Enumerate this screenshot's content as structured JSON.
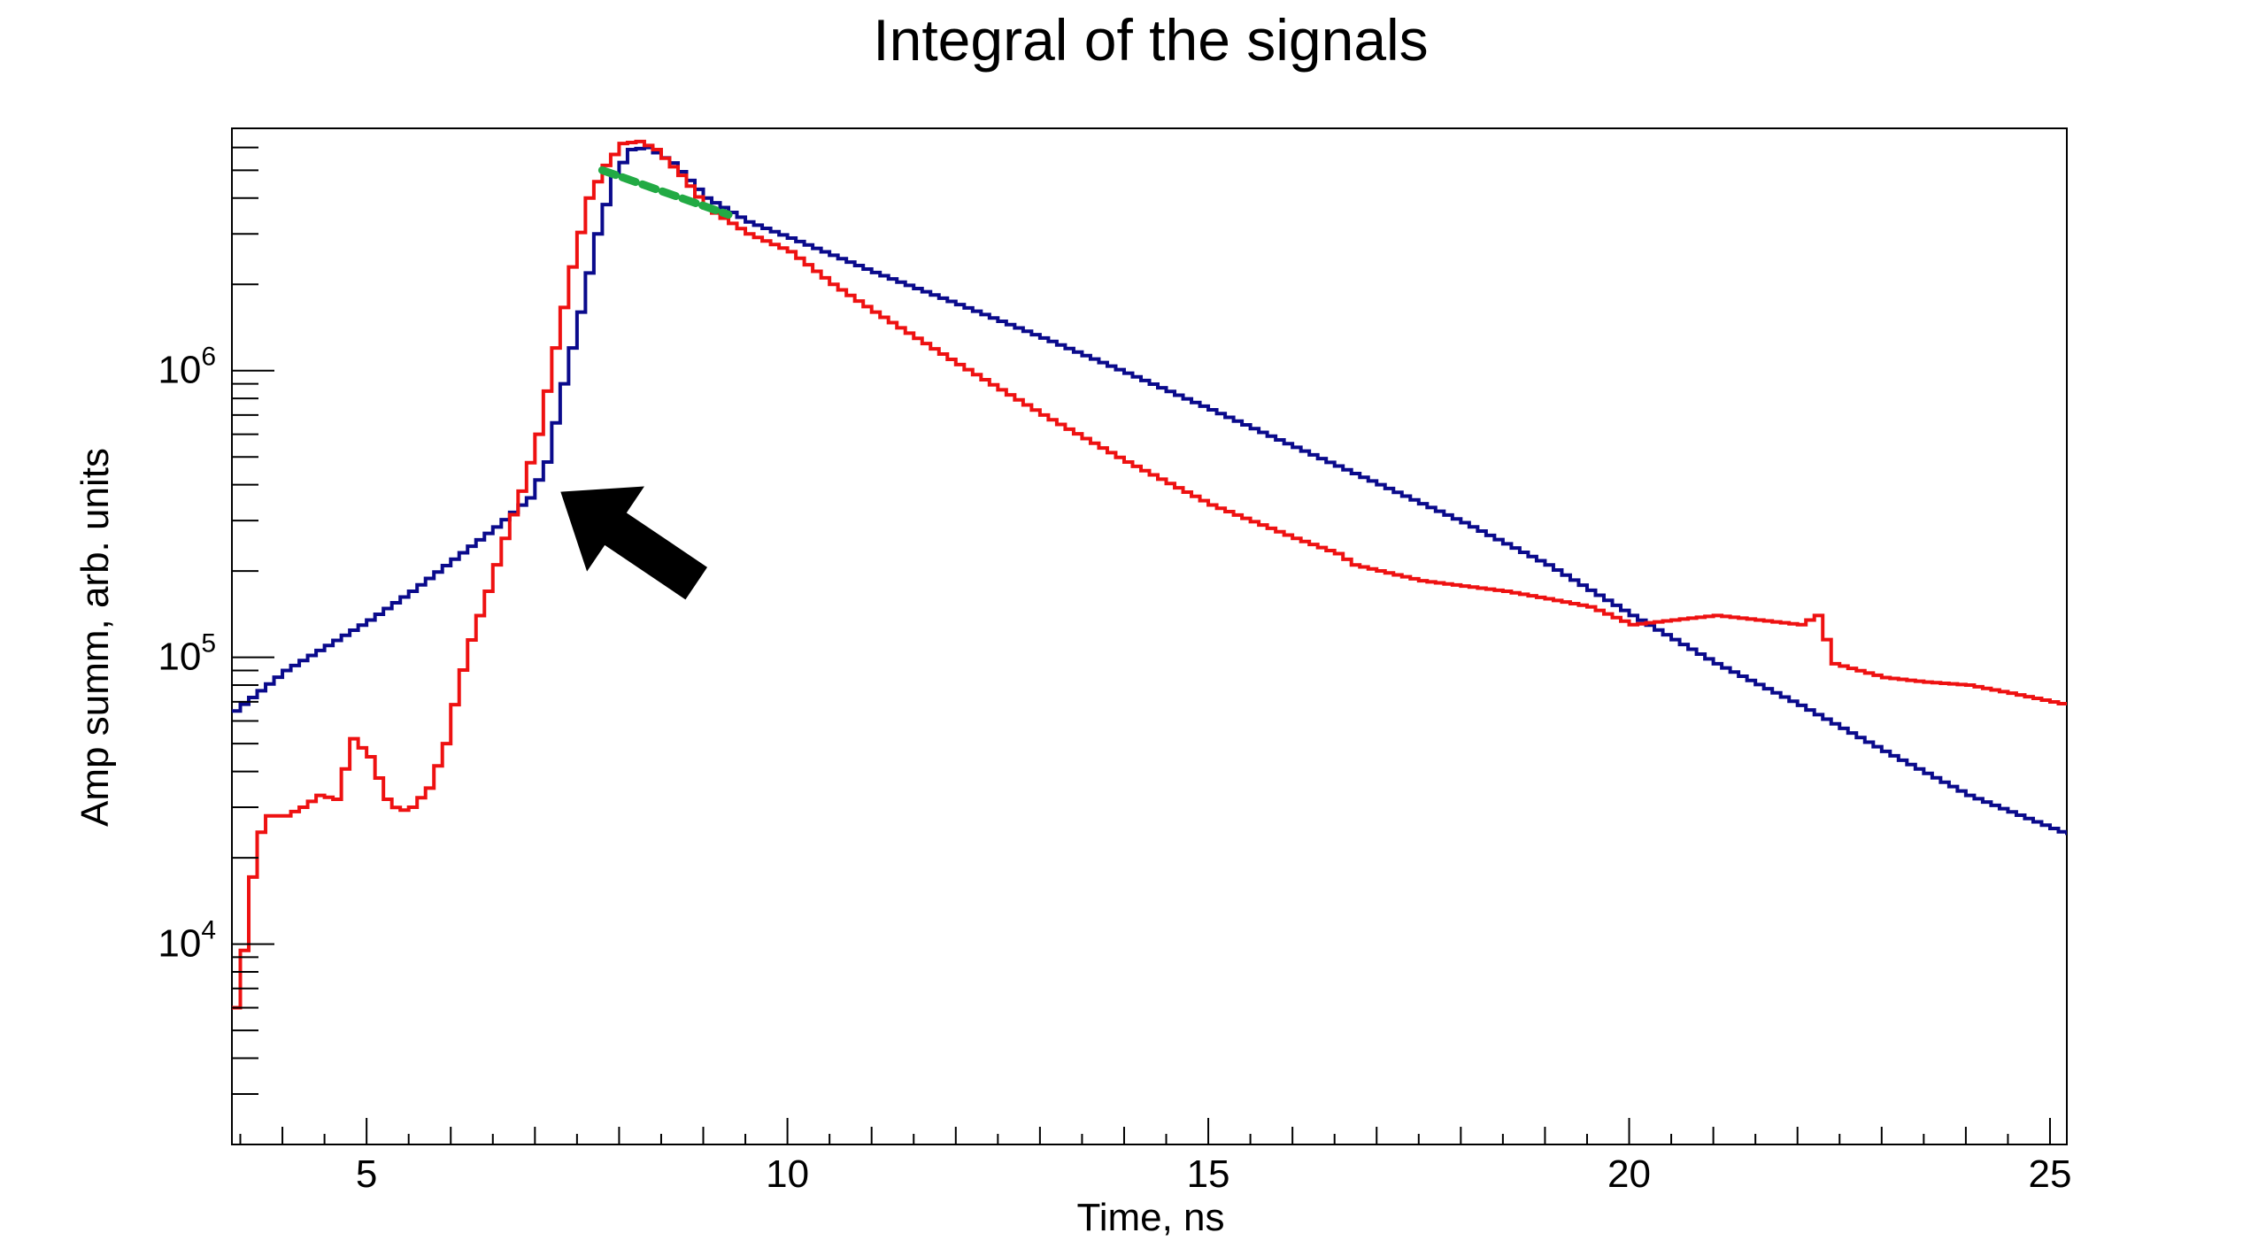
{
  "chart_data": {
    "type": "line",
    "title": "Integral of the signals",
    "xlabel": "Time, ns",
    "ylabel": "Amp summ, arb. units",
    "xlim": [
      3.4,
      25.2
    ],
    "ylim": [
      2000,
      7000000
    ],
    "yscale": "log",
    "grid": false,
    "legend": "none",
    "x_ticks": [
      {
        "value": 5,
        "label": "5"
      },
      {
        "value": 10,
        "label": "10"
      },
      {
        "value": 15,
        "label": "15"
      },
      {
        "value": 20,
        "label": "20"
      },
      {
        "value": 25,
        "label": "25"
      }
    ],
    "y_ticks": [
      {
        "value": 10000,
        "base": "10",
        "exp": "4"
      },
      {
        "value": 100000,
        "base": "10",
        "exp": "5"
      },
      {
        "value": 1000000,
        "base": "10",
        "exp": "6"
      }
    ],
    "series": [
      {
        "color": "#0a0a8c",
        "style": "step",
        "x": [
          3.4,
          4.0,
          4.5,
          5.0,
          5.5,
          6.0,
          6.5,
          6.9,
          7.1,
          7.3,
          7.5,
          7.7,
          7.9,
          8.1,
          8.3,
          8.6,
          9.0,
          9.5,
          10.0,
          11.0,
          12.0,
          13.0,
          14.0,
          15.0,
          16.0,
          17.0,
          18.0,
          19.0,
          20.0,
          21.0,
          22.0,
          23.0,
          24.0,
          25.2
        ],
        "y": [
          65000,
          90000,
          110000,
          135000,
          170000,
          220000,
          285000,
          360000,
          480000,
          900000,
          1600000,
          3000000,
          4800000,
          5900000,
          6000000,
          5300000,
          4000000,
          3300000,
          2900000,
          2200000,
          1700000,
          1300000,
          980000,
          730000,
          540000,
          400000,
          295000,
          210000,
          140000,
          95000,
          68000,
          47000,
          33000,
          24000
        ]
      },
      {
        "color": "#ee1111",
        "style": "step",
        "x": [
          3.4,
          3.5,
          3.65,
          3.8,
          4.0,
          4.2,
          4.4,
          4.6,
          4.8,
          5.0,
          5.2,
          5.35,
          5.5,
          5.7,
          5.9,
          6.05,
          6.2,
          6.4,
          6.6,
          6.8,
          7.0,
          7.2,
          7.4,
          7.6,
          7.8,
          8.0,
          8.2,
          8.4,
          8.7,
          9.0,
          9.5,
          10.0,
          10.5,
          11.0,
          12.0,
          13.0,
          14.0,
          15.0,
          16.0,
          16.5,
          16.7,
          17.5,
          18.5,
          19.0,
          19.5,
          20.0,
          20.5,
          21.0,
          21.5,
          22.0,
          22.2,
          22.4,
          23.0,
          23.5,
          24.0,
          24.5,
          25.2
        ],
        "y": [
          6000,
          9500,
          23000,
          28000,
          28000,
          30000,
          33000,
          32000,
          52000,
          45000,
          32000,
          29000,
          30000,
          35000,
          50000,
          80000,
          115000,
          170000,
          260000,
          380000,
          600000,
          1200000,
          2300000,
          4000000,
          5200000,
          6200000,
          6300000,
          5900000,
          4800000,
          3700000,
          3000000,
          2600000,
          2000000,
          1600000,
          1050000,
          700000,
          480000,
          340000,
          260000,
          230000,
          210000,
          185000,
          170000,
          160000,
          150000,
          130000,
          135000,
          140000,
          135000,
          130000,
          140000,
          95000,
          85000,
          82000,
          80000,
          75000,
          68000
        ]
      },
      {
        "color": "#22aa44",
        "style": "dashed",
        "x": [
          7.8,
          9.3
        ],
        "y": [
          5000000,
          3500000
        ]
      }
    ],
    "annotations": [
      {
        "type": "arrow",
        "color": "#000000",
        "x": 7.2,
        "y": 400000
      }
    ]
  }
}
